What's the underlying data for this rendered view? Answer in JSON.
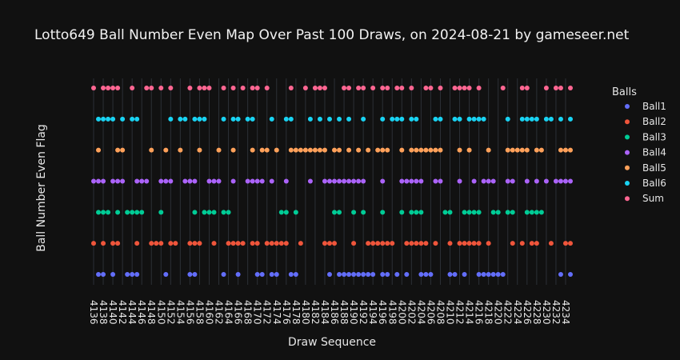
{
  "chart_data": {
    "type": "scatter",
    "title": "Lotto649 Ball Number Even Map Over Past 100 Draws, on 2024-08-21 by gameseer.net",
    "xlabel": "Draw Sequence",
    "ylabel": "Ball Number Even Flag",
    "legend_title": "Balls",
    "legend_position": "right",
    "grid": true,
    "x_range": [
      4136,
      4235
    ],
    "x_ticks": [
      4136,
      4138,
      4140,
      4142,
      4144,
      4146,
      4148,
      4150,
      4152,
      4154,
      4156,
      4158,
      4160,
      4162,
      4164,
      4166,
      4168,
      4170,
      4172,
      4174,
      4176,
      4178,
      4180,
      4182,
      4184,
      4186,
      4188,
      4190,
      4192,
      4194,
      4196,
      4198,
      4200,
      4202,
      4204,
      4206,
      4208,
      4210,
      4212,
      4214,
      4216,
      4218,
      4220,
      4222,
      4224,
      4226,
      4228,
      4230,
      4232,
      4234
    ],
    "series": [
      {
        "name": "Ball1",
        "color": "#636efa",
        "row": 0,
        "x": [
          4137,
          4138,
          4140,
          4143,
          4144,
          4145,
          4151,
          4156,
          4157,
          4163,
          4166,
          4170,
          4171,
          4173,
          4174,
          4177,
          4178,
          4185,
          4187,
          4188,
          4189,
          4190,
          4191,
          4192,
          4193,
          4194,
          4196,
          4197,
          4199,
          4201,
          4204,
          4205,
          4206,
          4210,
          4211,
          4213,
          4216,
          4217,
          4218,
          4219,
          4220,
          4221,
          4233,
          4235
        ]
      },
      {
        "name": "Ball2",
        "color": "#ef553b",
        "row": 1,
        "x": [
          4136,
          4138,
          4140,
          4141,
          4145,
          4148,
          4149,
          4150,
          4152,
          4153,
          4156,
          4157,
          4158,
          4161,
          4164,
          4165,
          4166,
          4167,
          4169,
          4170,
          4172,
          4173,
          4174,
          4175,
          4176,
          4179,
          4184,
          4185,
          4186,
          4190,
          4193,
          4194,
          4195,
          4196,
          4197,
          4198,
          4201,
          4202,
          4203,
          4204,
          4205,
          4207,
          4210,
          4212,
          4213,
          4214,
          4215,
          4216,
          4218,
          4223,
          4225,
          4227,
          4228,
          4231,
          4234,
          4235
        ]
      },
      {
        "name": "Ball3",
        "color": "#00cc96",
        "row": 2,
        "x": [
          4137,
          4138,
          4139,
          4141,
          4143,
          4144,
          4145,
          4146,
          4150,
          4157,
          4159,
          4160,
          4161,
          4163,
          4164,
          4175,
          4176,
          4178,
          4186,
          4187,
          4190,
          4192,
          4196,
          4200,
          4202,
          4203,
          4204,
          4209,
          4210,
          4213,
          4214,
          4215,
          4216,
          4219,
          4220,
          4222,
          4223,
          4226,
          4227,
          4228,
          4229
        ]
      },
      {
        "name": "Ball4",
        "color": "#ab63fa",
        "row": 3,
        "x": [
          4136,
          4137,
          4138,
          4140,
          4141,
          4142,
          4145,
          4146,
          4147,
          4150,
          4151,
          4152,
          4155,
          4156,
          4157,
          4160,
          4161,
          4162,
          4165,
          4168,
          4169,
          4170,
          4171,
          4173,
          4176,
          4181,
          4184,
          4185,
          4186,
          4187,
          4188,
          4189,
          4190,
          4191,
          4192,
          4196,
          4200,
          4201,
          4202,
          4203,
          4204,
          4207,
          4208,
          4212,
          4215,
          4217,
          4218,
          4219,
          4222,
          4223,
          4226,
          4228,
          4230,
          4232,
          4233,
          4234,
          4235
        ]
      },
      {
        "name": "Ball5",
        "color": "#ffa15a",
        "row": 4,
        "x": [
          4137,
          4141,
          4142,
          4148,
          4151,
          4154,
          4158,
          4162,
          4165,
          4169,
          4171,
          4172,
          4174,
          4177,
          4178,
          4179,
          4180,
          4181,
          4182,
          4183,
          4184,
          4186,
          4187,
          4189,
          4191,
          4193,
          4195,
          4196,
          4197,
          4200,
          4202,
          4203,
          4204,
          4205,
          4206,
          4207,
          4208,
          4212,
          4214,
          4218,
          4222,
          4223,
          4224,
          4225,
          4226,
          4228,
          4229,
          4233,
          4234,
          4235
        ]
      },
      {
        "name": "Ball6",
        "color": "#19d3f3",
        "row": 5,
        "x": [
          4137,
          4138,
          4139,
          4140,
          4142,
          4144,
          4145,
          4152,
          4154,
          4155,
          4157,
          4158,
          4159,
          4163,
          4165,
          4166,
          4168,
          4169,
          4173,
          4176,
          4177,
          4181,
          4183,
          4185,
          4187,
          4189,
          4192,
          4196,
          4198,
          4199,
          4200,
          4202,
          4203,
          4207,
          4208,
          4211,
          4212,
          4214,
          4215,
          4216,
          4217,
          4222,
          4225,
          4226,
          4227,
          4228,
          4230,
          4231,
          4233,
          4235
        ]
      },
      {
        "name": "Sum",
        "color": "#ff6692",
        "row": 6,
        "x": [
          4136,
          4138,
          4139,
          4140,
          4141,
          4144,
          4147,
          4148,
          4150,
          4152,
          4156,
          4158,
          4159,
          4160,
          4163,
          4165,
          4167,
          4169,
          4170,
          4172,
          4177,
          4180,
          4182,
          4183,
          4184,
          4188,
          4189,
          4191,
          4192,
          4194,
          4196,
          4197,
          4199,
          4200,
          4202,
          4205,
          4206,
          4208,
          4211,
          4212,
          4213,
          4214,
          4216,
          4221,
          4225,
          4226,
          4230,
          4232,
          4233,
          4235
        ]
      }
    ]
  }
}
